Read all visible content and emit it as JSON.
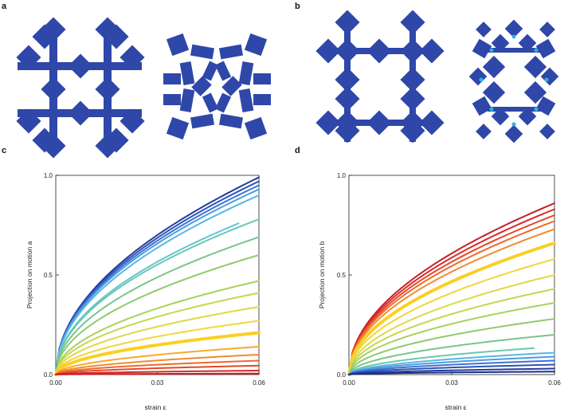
{
  "panels": {
    "a": "a",
    "b": "b",
    "c": "c",
    "d": "d"
  },
  "colors": {
    "mechanism": "#2f47a8",
    "hinge": "#27b6e0"
  },
  "chart_data": [
    {
      "type": "line",
      "panel": "c",
      "xlabel": "strain  ε",
      "ylabel": "Projection on motion  a",
      "xlim": [
        0,
        0.06
      ],
      "ylim": [
        0,
        1.0
      ],
      "xticks": [
        "0.00",
        "0.03",
        "0.06"
      ],
      "yticks": [
        "0.0",
        "0.5",
        "1.0"
      ],
      "colormap": "blue (top) to red (bottom)",
      "highlight_series_index": 13,
      "curve_shape": "power-law rise from origin",
      "series": [
        {
          "end": 0.99,
          "color": "#233c9b"
        },
        {
          "end": 0.97,
          "color": "#2d53b7"
        },
        {
          "end": 0.95,
          "color": "#3c74d0"
        },
        {
          "end": 0.93,
          "color": "#4f9ae0"
        },
        {
          "end": 0.9,
          "color": "#56b7e3"
        },
        {
          "end": 0.8,
          "color": "#63c6d2",
          "x_end": 0.054
        },
        {
          "end": 0.78,
          "color": "#6ac8b0"
        },
        {
          "end": 0.69,
          "color": "#79c58d"
        },
        {
          "end": 0.6,
          "color": "#8fca6d"
        },
        {
          "end": 0.47,
          "color": "#a8d25b"
        },
        {
          "end": 0.41,
          "color": "#c5d84e"
        },
        {
          "end": 0.34,
          "color": "#dfd946"
        },
        {
          "end": 0.27,
          "color": "#f0d63c"
        },
        {
          "end": 0.21,
          "color": "#fbcf23"
        },
        {
          "end": 0.14,
          "color": "#f7a92c"
        },
        {
          "end": 0.1,
          "color": "#f28a2e"
        },
        {
          "end": 0.07,
          "color": "#ec6a2b"
        },
        {
          "end": 0.045,
          "color": "#e4482a"
        },
        {
          "end": 0.02,
          "color": "#d82a28"
        },
        {
          "end": 0.005,
          "color": "#c51f25"
        }
      ]
    },
    {
      "type": "line",
      "panel": "d",
      "xlabel": "strain  ε",
      "ylabel": "Projection on motion  b",
      "xlim": [
        0,
        0.06
      ],
      "ylim": [
        0,
        1.0
      ],
      "xticks": [
        "0.00",
        "0.03",
        "0.06"
      ],
      "yticks": [
        "0.0",
        "0.5",
        "1.0"
      ],
      "colormap": "red (top) to blue (bottom)",
      "highlight_series_index": 5,
      "curve_shape": "power-law rise from origin",
      "series": [
        {
          "end": 0.86,
          "color": "#c51f25"
        },
        {
          "end": 0.83,
          "color": "#d82a28"
        },
        {
          "end": 0.8,
          "color": "#e4482a"
        },
        {
          "end": 0.77,
          "color": "#ec6a2b"
        },
        {
          "end": 0.73,
          "color": "#f28a2e"
        },
        {
          "end": 0.66,
          "color": "#fbcf23"
        },
        {
          "end": 0.58,
          "color": "#f0d63c"
        },
        {
          "end": 0.5,
          "color": "#dfd946"
        },
        {
          "end": 0.43,
          "color": "#c5d84e"
        },
        {
          "end": 0.36,
          "color": "#a8d25b"
        },
        {
          "end": 0.28,
          "color": "#8fca6d"
        },
        {
          "end": 0.2,
          "color": "#79c58d"
        },
        {
          "end": 0.14,
          "color": "#6ac8b0",
          "x_end": 0.054
        },
        {
          "end": 0.11,
          "color": "#56b7e3"
        },
        {
          "end": 0.09,
          "color": "#4f9ae0"
        },
        {
          "end": 0.07,
          "color": "#3c74d0"
        },
        {
          "end": 0.05,
          "color": "#2d53b7"
        },
        {
          "end": 0.03,
          "color": "#233c9b"
        },
        {
          "end": 0.015,
          "color": "#1c2f85"
        }
      ]
    }
  ]
}
